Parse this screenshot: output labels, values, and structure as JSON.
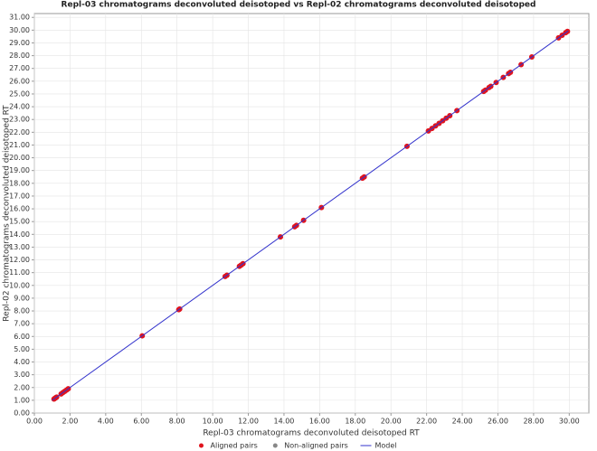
{
  "chart_data": {
    "type": "scatter",
    "title": "Repl-03 chromatograms deconvoluted deisotoped vs Repl-02 chromatograms deconvoluted deisotoped",
    "x_label": "Repl-03 chromatograms deconvoluted deisotoped RT",
    "y_label": "Repl-02 chromatograms deconvoluted deisotoped RT",
    "xlim": [
      0,
      31.1
    ],
    "ylim": [
      0,
      31.3
    ],
    "grid": true,
    "legend": "bottom",
    "xticks": [
      {
        "value": 0,
        "label": "0.00"
      },
      {
        "value": 2,
        "label": "2.00"
      },
      {
        "value": 4,
        "label": "4.00"
      },
      {
        "value": 6,
        "label": "6.00"
      },
      {
        "value": 8,
        "label": "8.00"
      },
      {
        "value": 10,
        "label": "10.00"
      },
      {
        "value": 12,
        "label": "12.00"
      },
      {
        "value": 14,
        "label": "14.00"
      },
      {
        "value": 16,
        "label": "16.00"
      },
      {
        "value": 18,
        "label": "18.00"
      },
      {
        "value": 20,
        "label": "20.00"
      },
      {
        "value": 22,
        "label": "22.00"
      },
      {
        "value": 24,
        "label": "24.00"
      },
      {
        "value": 26,
        "label": "26.00"
      },
      {
        "value": 28,
        "label": "28.00"
      },
      {
        "value": 30,
        "label": "30.00"
      }
    ],
    "yticks": [
      {
        "value": 0,
        "label": "0.00"
      },
      {
        "value": 1,
        "label": "1.00"
      },
      {
        "value": 2,
        "label": "2.00"
      },
      {
        "value": 3,
        "label": "3.00"
      },
      {
        "value": 4,
        "label": "4.00"
      },
      {
        "value": 5,
        "label": "5.00"
      },
      {
        "value": 6,
        "label": "6.00"
      },
      {
        "value": 7,
        "label": "7.00"
      },
      {
        "value": 8,
        "label": "8.00"
      },
      {
        "value": 9,
        "label": "9.00"
      },
      {
        "value": 10,
        "label": "10.00"
      },
      {
        "value": 11,
        "label": "11.00"
      },
      {
        "value": 12,
        "label": "12.00"
      },
      {
        "value": 13,
        "label": "13.00"
      },
      {
        "value": 14,
        "label": "14.00"
      },
      {
        "value": 15,
        "label": "15.00"
      },
      {
        "value": 16,
        "label": "16.00"
      },
      {
        "value": 17,
        "label": "17.00"
      },
      {
        "value": 18,
        "label": "18.00"
      },
      {
        "value": 19,
        "label": "19.00"
      },
      {
        "value": 20,
        "label": "20.00"
      },
      {
        "value": 21,
        "label": "21.00"
      },
      {
        "value": 22,
        "label": "22.00"
      },
      {
        "value": 23,
        "label": "23.00"
      },
      {
        "value": 24,
        "label": "24.00"
      },
      {
        "value": 25,
        "label": "25.00"
      },
      {
        "value": 26,
        "label": "26.00"
      },
      {
        "value": 27,
        "label": "27.00"
      },
      {
        "value": 28,
        "label": "28.00"
      },
      {
        "value": 29,
        "label": "29.00"
      },
      {
        "value": 30,
        "label": "30.00"
      },
      {
        "value": 31,
        "label": "31.00"
      }
    ],
    "series": [
      {
        "name": "Aligned pairs",
        "type": "scatter",
        "color": "#e0141e",
        "x": [
          1.1,
          1.15,
          1.2,
          1.25,
          1.5,
          1.6,
          1.7,
          1.8,
          1.9,
          6.05,
          8.1,
          8.15,
          10.7,
          10.8,
          11.5,
          11.6,
          11.7,
          13.8,
          14.6,
          14.7,
          15.1,
          16.1,
          18.4,
          18.5,
          20.9,
          22.1,
          22.3,
          22.5,
          22.7,
          22.9,
          23.1,
          23.3,
          23.7,
          25.2,
          25.3,
          25.5,
          25.6,
          25.9,
          26.3,
          26.6,
          26.7,
          27.3,
          27.9,
          29.4,
          29.6,
          29.8,
          29.9
        ],
        "values": [
          1.1,
          1.15,
          1.2,
          1.25,
          1.5,
          1.6,
          1.7,
          1.8,
          1.9,
          6.05,
          8.1,
          8.15,
          10.7,
          10.8,
          11.5,
          11.6,
          11.7,
          13.8,
          14.6,
          14.7,
          15.1,
          16.1,
          18.4,
          18.5,
          20.9,
          22.1,
          22.3,
          22.5,
          22.7,
          22.9,
          23.1,
          23.3,
          23.7,
          25.2,
          25.3,
          25.5,
          25.6,
          25.9,
          26.3,
          26.6,
          26.7,
          27.3,
          27.9,
          29.4,
          29.6,
          29.8,
          29.9
        ]
      },
      {
        "name": "Non-aligned pairs",
        "type": "scatter",
        "color": "#888888",
        "x": [],
        "values": []
      },
      {
        "name": "Model",
        "type": "line",
        "color": "#3333cc",
        "x": [
          1.0,
          29.95
        ],
        "values": [
          1.0,
          29.95
        ]
      }
    ]
  }
}
